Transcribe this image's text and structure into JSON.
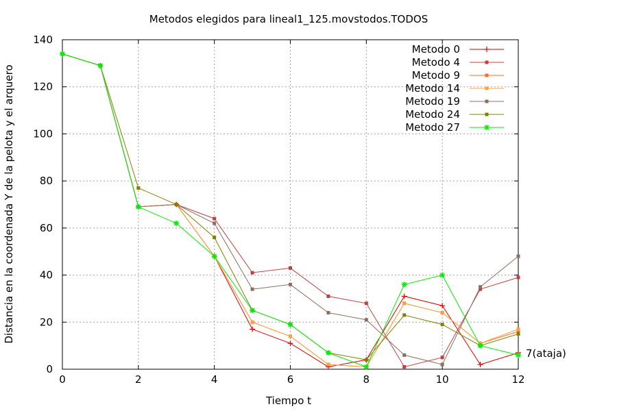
{
  "chart_data": {
    "type": "line",
    "title": "Metodos elegidos para lineal1_125.movstodos.TODOS",
    "xlabel": "Tiempo t",
    "ylabel": "Distancia en la coordenada Y de la pelota y el arquero",
    "xlim": [
      0,
      12
    ],
    "ylim": [
      0,
      140
    ],
    "xticks": [
      0,
      2,
      4,
      6,
      8,
      10,
      12
    ],
    "yticks": [
      0,
      20,
      40,
      60,
      80,
      100,
      120,
      140
    ],
    "grid": true,
    "legend_position": "top-right",
    "annotation": {
      "text": "7(ataja)",
      "x": 12,
      "y": 7
    },
    "x": [
      0,
      1,
      2,
      3,
      4,
      5,
      6,
      7,
      8,
      9,
      10,
      11,
      12
    ],
    "series": [
      {
        "name": "Metodo 0",
        "color": "#e00000",
        "marker": "plus",
        "values": [
          134,
          129,
          69,
          70,
          48,
          17,
          11,
          1,
          4,
          31,
          27,
          2,
          7
        ]
      },
      {
        "name": "Metodo 4",
        "color": "#c04040",
        "marker": "square",
        "values": [
          134,
          129,
          69,
          70,
          64,
          41,
          43,
          31,
          28,
          1,
          5,
          34,
          39
        ]
      },
      {
        "name": "Metodo 9",
        "color": "#ff6a30",
        "marker": "square",
        "values": [
          134,
          129,
          69,
          70,
          48,
          20,
          14,
          2,
          1,
          28,
          24,
          11,
          16
        ]
      },
      {
        "name": "Metodo 14",
        "color": "#ffa040",
        "marker": "square",
        "values": [
          134,
          129,
          69,
          70,
          48,
          20,
          14,
          2,
          1,
          28,
          24,
          11,
          17
        ]
      },
      {
        "name": "Metodo 19",
        "color": "#8a7060",
        "marker": "square",
        "values": [
          134,
          129,
          69,
          70,
          62,
          34,
          36,
          24,
          21,
          6,
          2,
          35,
          48
        ]
      },
      {
        "name": "Metodo 24",
        "color": "#808000",
        "marker": "square",
        "values": [
          134,
          129,
          77,
          70,
          56,
          25,
          19,
          7,
          4,
          23,
          19,
          10,
          15
        ]
      },
      {
        "name": "Metodo 27",
        "color": "#00ee00",
        "marker": "star",
        "values": [
          134,
          129,
          69,
          62,
          48,
          25,
          19,
          7,
          1,
          36,
          40,
          10,
          6
        ]
      }
    ]
  }
}
